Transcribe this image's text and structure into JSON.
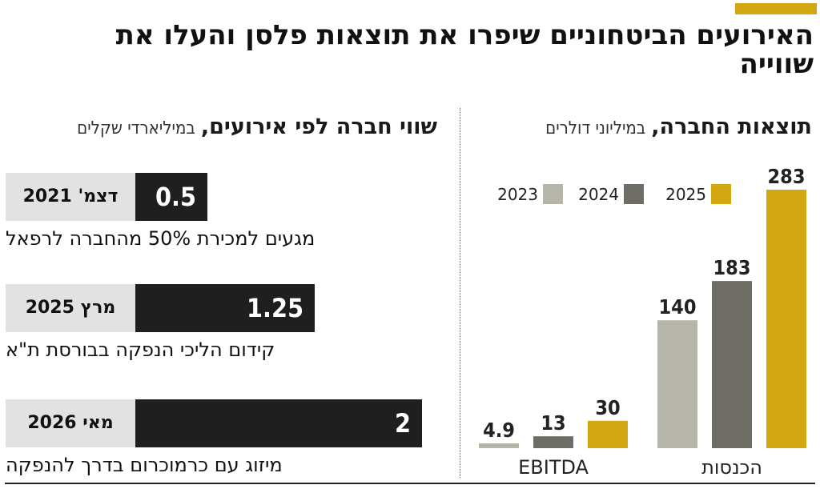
{
  "title": "האירועים הביטחוניים שיפרו את תוצאות פלסן והעלו את שווייה",
  "left_panel": {
    "title_main": "שווי חברה לפי אירועים,",
    "title_unit": "במיליארדי שקלים",
    "max_value": 2,
    "events": [
      {
        "date": "דצמ' 2021",
        "value": 0.5,
        "value_label": "0.5",
        "description": "מגעים למכירת 50% מהחברה לרפאל"
      },
      {
        "date": "מרץ 2025",
        "value": 1.25,
        "value_label": "1.25",
        "description": "קידום הליכי הנפקה בבורסת ת\"א"
      },
      {
        "date": "מאי 2026",
        "value": 2,
        "value_label": "2",
        "description": "מיזוג עם כרמוכרום בדרך להנפקה"
      }
    ]
  },
  "right_panel": {
    "title_main": "תוצאות החברה,",
    "title_unit": "במיליוני דולרים"
  },
  "chart_data": {
    "type": "bar",
    "categories": [
      "EBITDA",
      "הכנסות"
    ],
    "series": [
      {
        "name": "2023",
        "values": [
          4.9,
          140
        ],
        "color": "#b5b5aa"
      },
      {
        "name": "2024",
        "values": [
          13,
          183
        ],
        "color": "#6d6d66"
      },
      {
        "name": "2025",
        "values": [
          30,
          283
        ],
        "color": "#d2a712"
      }
    ],
    "legend_position": "top-left",
    "ylim": [
      0,
      283
    ],
    "grid": false
  }
}
